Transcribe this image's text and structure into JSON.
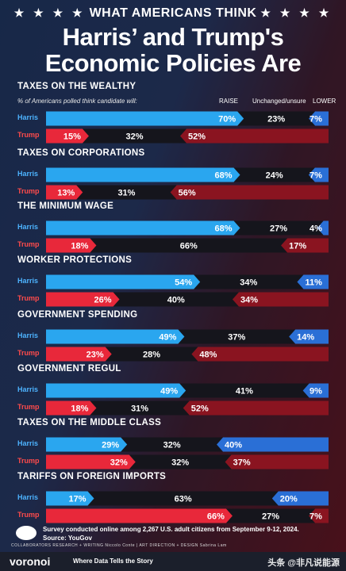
{
  "header": {
    "kicker": "WHAT AMERICANS THINK",
    "stars": "★ ★ ★ ★",
    "title_line1": "Harris’ and Trump's",
    "title_line2": "Economic Policies Are"
  },
  "subtitle": "% of Americans polled think candidate will:",
  "legend": {
    "raise": "RAISE",
    "unchanged": "Unchanged/unsure",
    "lower": "LOWER"
  },
  "colors": {
    "harris_raise": "#2aa6ef",
    "harris_lower": "#2a6fd6",
    "trump_raise": "#e8283a",
    "trump_lower": "#8a1420",
    "neutral": "#15151c"
  },
  "chart_data": {
    "type": "bar",
    "stacked": true,
    "percent": true,
    "segments": [
      "RAISE",
      "Unchanged/unsure",
      "LOWER"
    ],
    "categories": [
      {
        "title": "TAXES ON THE WEALTHY",
        "harris": {
          "label": "Harris",
          "raise": 70,
          "unchanged": 23,
          "lower": 7
        },
        "trump": {
          "label": "Trump",
          "raise": 15,
          "unchanged": 32,
          "lower": 52
        }
      },
      {
        "title": "TAXES ON CORPORATIONS",
        "harris": {
          "label": "Harris",
          "raise": 68,
          "unchanged": 24,
          "lower": 7
        },
        "trump": {
          "label": "Trump",
          "raise": 13,
          "unchanged": 31,
          "lower": 56
        }
      },
      {
        "title": "THE MINIMUM WAGE",
        "harris": {
          "label": "Harris",
          "raise": 68,
          "unchanged": 27,
          "lower": 4
        },
        "trump": {
          "label": "Trump",
          "raise": 18,
          "unchanged": 66,
          "lower": 17
        }
      },
      {
        "title": "WORKER PROTECTIONS",
        "harris": {
          "label": "Harris",
          "raise": 54,
          "unchanged": 34,
          "lower": 11
        },
        "trump": {
          "label": "Trump",
          "raise": 26,
          "unchanged": 40,
          "lower": 34
        }
      },
      {
        "title": "GOVERNMENT SPENDING",
        "harris": {
          "label": "Harris",
          "raise": 49,
          "unchanged": 37,
          "lower": 14
        },
        "trump": {
          "label": "Trump",
          "raise": 23,
          "unchanged": 28,
          "lower": 48
        }
      },
      {
        "title": "GOVERNMENT REGUL",
        "harris": {
          "label": "Harris",
          "raise": 49,
          "unchanged": 41,
          "lower": 9
        },
        "trump": {
          "label": "Trump",
          "raise": 18,
          "unchanged": 31,
          "lower": 52
        }
      },
      {
        "title": "TAXES ON THE MIDDLE CLASS",
        "harris": {
          "label": "Harris",
          "raise": 29,
          "unchanged": 32,
          "lower": 40
        },
        "trump": {
          "label": "Trump",
          "raise": 32,
          "unchanged": 32,
          "lower": 37
        }
      },
      {
        "title": "TARIFFS ON FOREIGN IMPORTS",
        "harris": {
          "label": "Harris",
          "raise": 17,
          "unchanged": 63,
          "lower": 20
        },
        "trump": {
          "label": "Trump",
          "raise": 66,
          "unchanged": 27,
          "lower": 7
        }
      }
    ]
  },
  "footer": {
    "note": "Survey conducted online among 2,267 U.S. adult citizens from September 9-12, 2024.",
    "source": "Source: YouGov",
    "collaborators": "COLLABORATORS   RESEARCH + WRITING Niccolo Conte  |  ART DIRECTION + DESIGN Sabrina Lam",
    "brand": "voronoi",
    "tagline": "Where Data Tells the Story",
    "watermark": "头条 @非凡说能源"
  }
}
